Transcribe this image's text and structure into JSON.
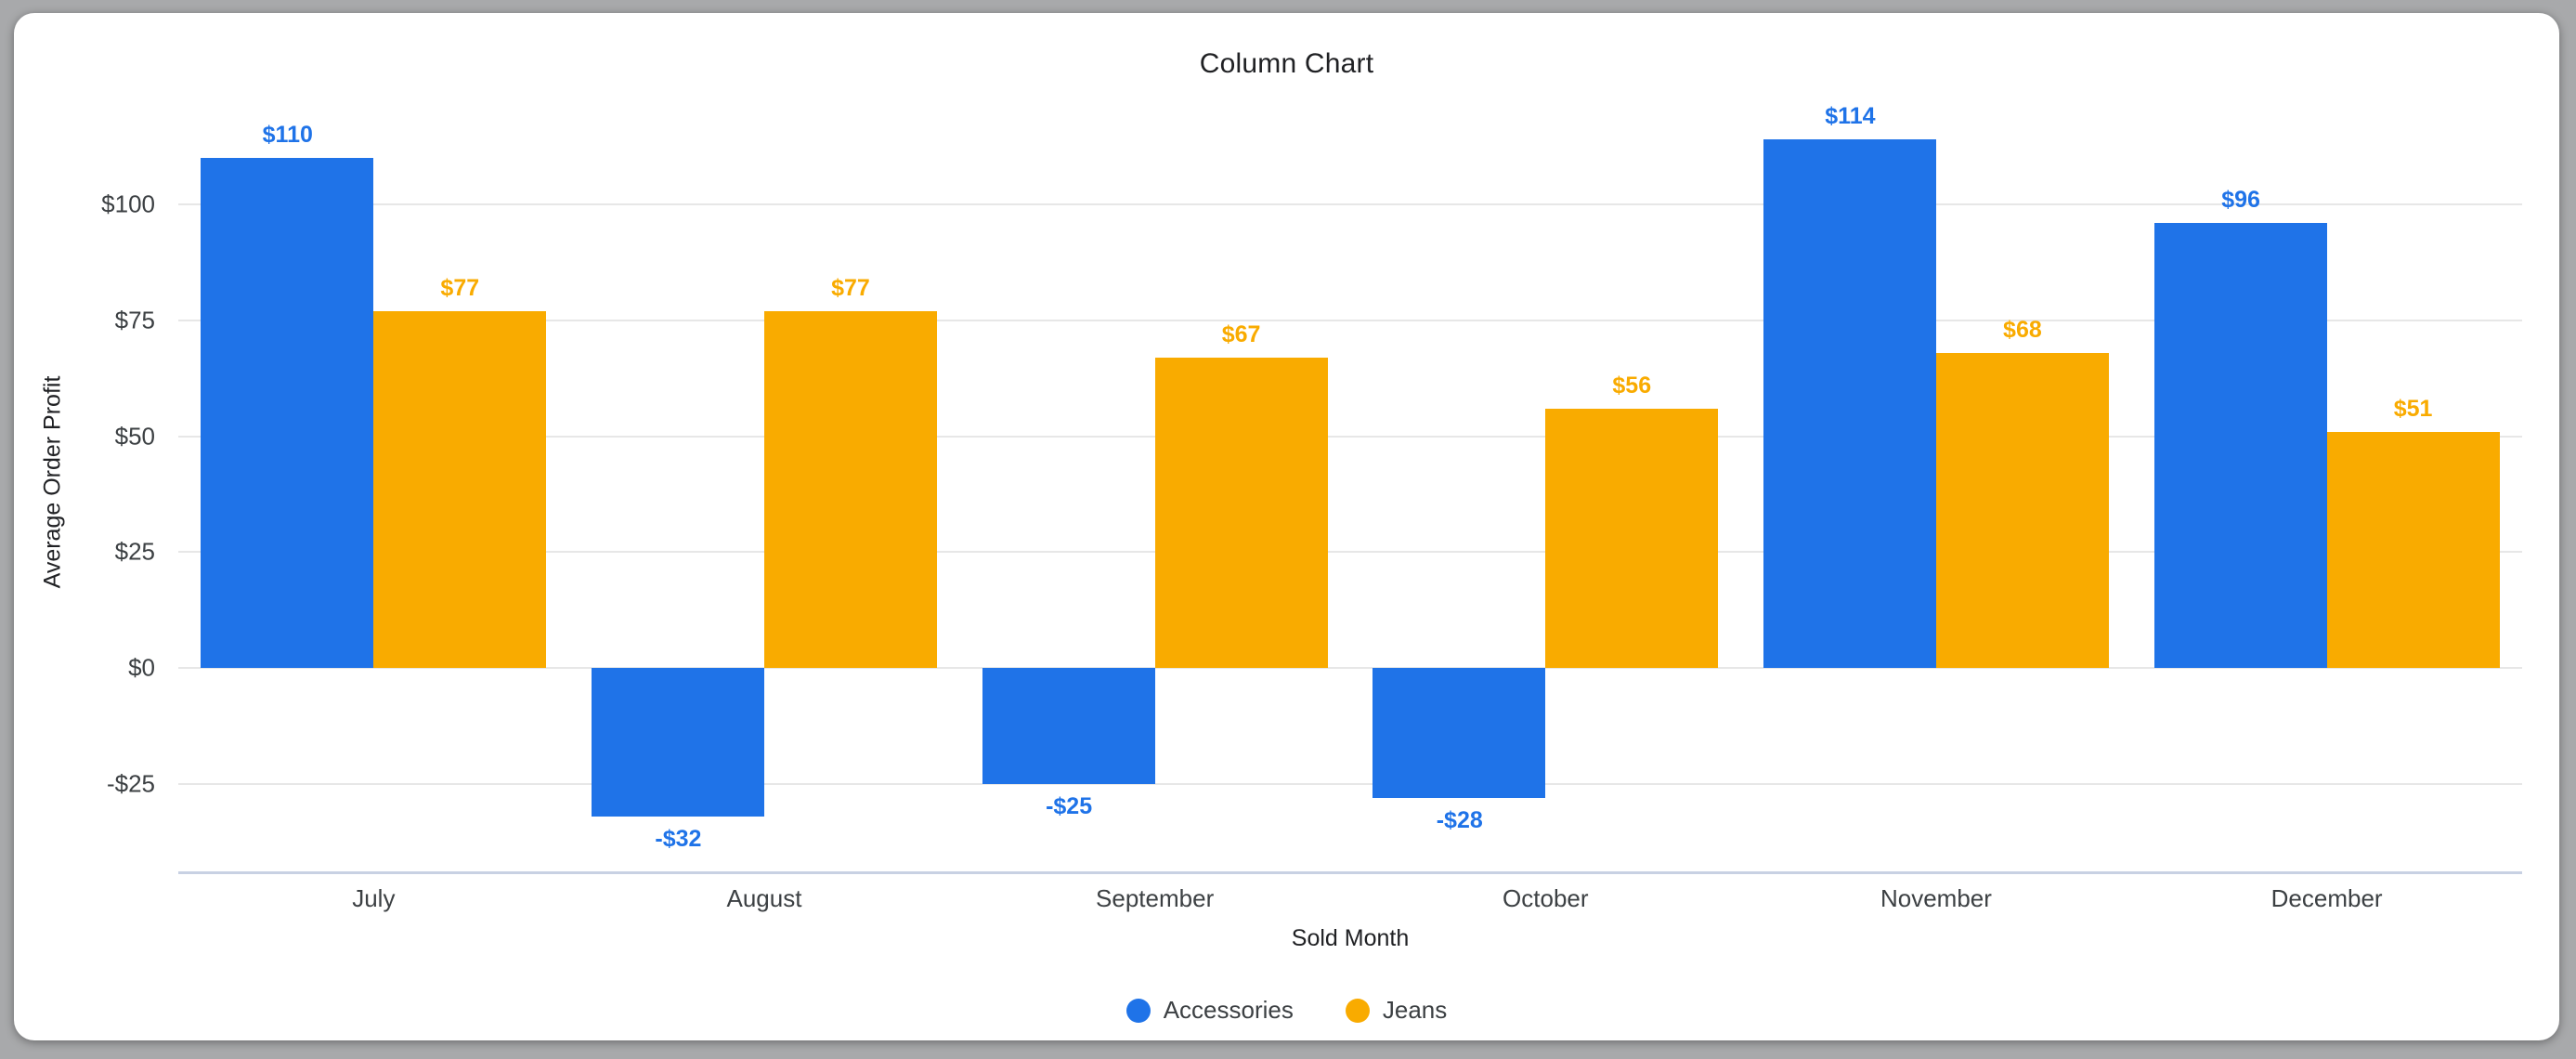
{
  "window": {
    "background_color": "#a8a9ab",
    "card_color": "#ffffff"
  },
  "chart_data": {
    "type": "bar",
    "title": "Column Chart",
    "xlabel": "Sold Month",
    "ylabel": "Average Order Profit",
    "categories": [
      "July",
      "August",
      "September",
      "October",
      "November",
      "December"
    ],
    "series": [
      {
        "name": "Accessories",
        "color": "#1f73e8",
        "values": [
          110,
          -32,
          -25,
          -28,
          114,
          96
        ],
        "labels": [
          "$110",
          "-$32",
          "-$25",
          "-$28",
          "$114",
          "$96"
        ]
      },
      {
        "name": "Jeans",
        "color": "#f9ab00",
        "values": [
          77,
          77,
          67,
          56,
          68,
          51
        ],
        "labels": [
          "$77",
          "$77",
          "$67",
          "$56",
          "$68",
          "$51"
        ]
      }
    ],
    "yticks": [
      {
        "value": 100,
        "label": "$100"
      },
      {
        "value": 75,
        "label": "$75"
      },
      {
        "value": 50,
        "label": "$50"
      },
      {
        "value": 25,
        "label": "$25"
      },
      {
        "value": 0,
        "label": "$0"
      },
      {
        "value": -25,
        "label": "-$25"
      }
    ],
    "ylim": [
      -44,
      124
    ],
    "grid": true,
    "legend_position": "bottom",
    "gridline_color": "#e7e7e7",
    "baseline_color": "#c8d1e3",
    "label_colors": {
      "Accessories": "#1f73e8",
      "Jeans": "#f9ab00"
    }
  }
}
